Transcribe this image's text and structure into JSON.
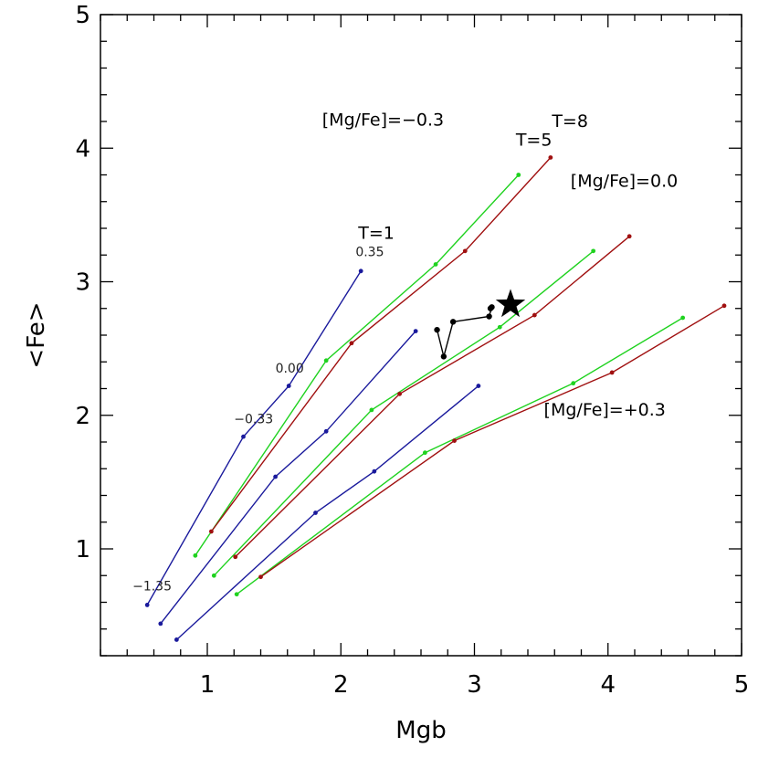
{
  "chart_data": {
    "type": "line",
    "xlabel": "Mgb",
    "ylabel": "<Fe>",
    "xlim": [
      0.2,
      5.0
    ],
    "ylim": [
      0.2,
      5.0
    ],
    "xticks": [
      "1",
      "2",
      "3",
      "4",
      "5"
    ],
    "yticks": [
      "1",
      "2",
      "3",
      "4",
      "5"
    ],
    "grid": false,
    "colors": {
      "blue": "#1a1a9c",
      "green": "#1fd21f",
      "red": "#a01010",
      "black": "#000000"
    },
    "series": [
      {
        "name": "T=1",
        "group": "[Mg/Fe]=-0.3",
        "color": "#1a1a9c",
        "x": [
          0.55,
          1.27,
          1.61,
          2.15
        ],
        "y": [
          0.58,
          1.84,
          2.22,
          3.08
        ]
      },
      {
        "group": "[Mg/Fe]=0.0",
        "color": "#1a1a9c",
        "x": [
          0.65,
          1.51,
          1.89,
          2.56
        ],
        "y": [
          0.44,
          1.54,
          1.88,
          2.63
        ]
      },
      {
        "group": "[Mg/Fe]=+0.3",
        "color": "#1a1a9c",
        "x": [
          0.77,
          1.81,
          2.25,
          3.03
        ],
        "y": [
          0.32,
          1.27,
          1.58,
          2.22
        ]
      },
      {
        "name": "T=5",
        "group": "[Mg/Fe]=-0.3",
        "color": "#1fd21f",
        "x": [
          0.91,
          1.89,
          2.71,
          3.33
        ],
        "y": [
          0.95,
          2.41,
          3.13,
          3.8
        ]
      },
      {
        "group": "[Mg/Fe]=0.0",
        "color": "#1fd21f",
        "x": [
          1.05,
          2.23,
          3.19,
          3.89
        ],
        "y": [
          0.8,
          2.04,
          2.66,
          3.23
        ]
      },
      {
        "group": "[Mg/Fe]=+0.3",
        "color": "#1fd21f",
        "x": [
          1.22,
          2.63,
          3.74,
          4.56
        ],
        "y": [
          0.66,
          1.72,
          2.24,
          2.73
        ]
      },
      {
        "name": "T=8",
        "group": "[Mg/Fe]=-0.3",
        "color": "#a01010",
        "x": [
          1.03,
          2.08,
          2.93,
          3.57
        ],
        "y": [
          1.13,
          2.54,
          3.23,
          3.93
        ]
      },
      {
        "group": "[Mg/Fe]=0.0",
        "color": "#a01010",
        "x": [
          1.21,
          2.44,
          3.45,
          4.16
        ],
        "y": [
          0.94,
          2.16,
          2.75,
          3.34
        ]
      },
      {
        "group": "[Mg/Fe]=+0.3",
        "color": "#a01010",
        "x": [
          1.4,
          2.85,
          4.03,
          4.87
        ],
        "y": [
          0.79,
          1.81,
          2.32,
          2.82
        ]
      },
      {
        "group": "observed",
        "color": "#000000",
        "x": [
          2.72,
          2.77,
          2.84,
          3.11,
          3.13,
          3.12
        ],
        "y": [
          2.64,
          2.44,
          2.7,
          2.74,
          2.81,
          2.8
        ]
      }
    ],
    "star": {
      "x": 3.27,
      "y": 2.83,
      "color": "#000000"
    },
    "annotations": [
      {
        "text": "[Mg/Fe]=−0.3",
        "x": 1.86,
        "y": 4.17,
        "color": "#000000",
        "size": "large"
      },
      {
        "text": "[Mg/Fe]=0.0",
        "x": 3.72,
        "y": 3.71,
        "color": "#000000",
        "size": "large"
      },
      {
        "text": "[Mg/Fe]=+0.3",
        "x": 3.52,
        "y": 2.0,
        "color": "#000000",
        "size": "large"
      },
      {
        "text": "T=1",
        "x": 2.13,
        "y": 3.32,
        "color": "#1a1a9c",
        "size": "large"
      },
      {
        "text": "T=5",
        "x": 3.31,
        "y": 4.02,
        "color": "#1fd21f",
        "size": "large"
      },
      {
        "text": "T=8",
        "x": 3.58,
        "y": 4.16,
        "color": "#a01010",
        "size": "large"
      },
      {
        "text": "0.35",
        "x": 2.11,
        "y": 3.19,
        "color": "#222222",
        "size": "small"
      },
      {
        "text": "0.00",
        "x": 1.51,
        "y": 2.32,
        "color": "#222222",
        "size": "small"
      },
      {
        "text": "−0.33",
        "x": 1.2,
        "y": 1.94,
        "color": "#222222",
        "size": "small"
      },
      {
        "text": "−1.35",
        "x": 0.44,
        "y": 0.69,
        "color": "#222222",
        "size": "small"
      }
    ]
  }
}
